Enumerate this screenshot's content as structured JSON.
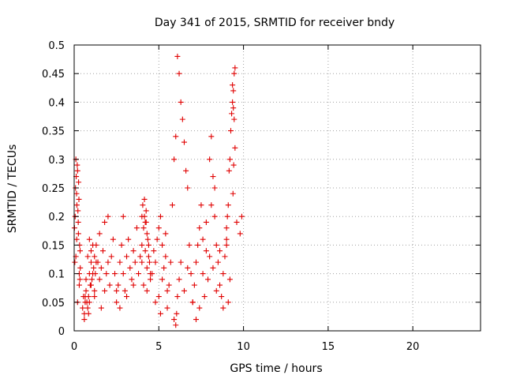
{
  "chart_data": {
    "type": "scatter",
    "title": "Day 341 of 2015, SRMTID for receiver bndy",
    "xlabel": "GPS time / hours",
    "ylabel": "SRMTID / TECUs",
    "xlim": [
      0,
      24
    ],
    "ylim": [
      0,
      0.5
    ],
    "x_ticks": [
      0,
      5,
      10,
      15,
      20
    ],
    "x_tick_labels": [
      "0",
      "5",
      "10",
      "15",
      "20"
    ],
    "y_ticks": [
      0,
      0.05,
      0.1,
      0.15,
      0.2,
      0.25,
      0.3,
      0.35,
      0.4,
      0.45,
      0.5
    ],
    "y_tick_labels": [
      "0",
      "0.05",
      "0.1",
      "0.15",
      "0.2",
      "0.25",
      "0.3",
      "0.35",
      "0.4",
      "0.45",
      "0.5"
    ],
    "grid": true,
    "marker": "+",
    "marker_color": "#e00000",
    "series": [
      {
        "name": "SRMTID",
        "x": [
          0.02,
          0.04,
          0.06,
          0.08,
          0.1,
          0.12,
          0.14,
          0.16,
          0.18,
          0.2,
          0.22,
          0.24,
          0.26,
          0.28,
          0.3,
          0.32,
          0.34,
          0.36,
          0.1,
          0.2,
          0.3,
          0.15,
          0.25,
          0.35,
          0.5,
          0.55,
          0.6,
          0.65,
          0.7,
          0.75,
          0.8,
          0.85,
          0.9,
          0.95,
          1.0,
          1.05,
          1.1,
          1.15,
          1.2,
          1.25,
          1.3,
          0.6,
          0.7,
          0.8,
          0.9,
          1.0,
          0.65,
          0.85,
          0.9,
          1.0,
          1.1,
          1.2,
          1.3,
          1.4,
          1.5,
          1.6,
          1.7,
          1.8,
          1.9,
          2.0,
          2.1,
          2.2,
          2.3,
          2.4,
          2.5,
          1.5,
          1.8,
          2.0,
          1.2,
          1.6,
          2.5,
          2.6,
          2.7,
          2.8,
          2.9,
          3.0,
          3.1,
          3.2,
          3.3,
          3.4,
          3.5,
          3.6,
          3.7,
          3.8,
          3.9,
          4.0,
          2.9,
          3.1,
          3.5,
          2.7,
          4.0,
          4.05,
          4.1,
          4.15,
          4.2,
          4.25,
          4.3,
          4.35,
          4.4,
          4.45,
          4.5,
          4.1,
          4.2,
          4.3,
          4.15,
          4.25,
          4.4,
          4.5,
          4.0,
          4.3,
          4.6,
          4.7,
          4.8,
          4.9,
          5.0,
          5.1,
          5.2,
          5.3,
          5.4,
          5.5,
          4.8,
          5.0,
          5.2,
          5.4,
          5.1,
          5.5,
          5.6,
          5.7,
          5.8,
          5.9,
          6.0,
          6.1,
          6.2,
          6.3,
          6.4,
          6.5,
          6.6,
          6.7,
          6.8,
          6.9,
          7.0,
          5.9,
          6.0,
          6.05,
          6.1,
          6.2,
          6.3,
          6.5,
          6.7,
          7.0,
          7.1,
          7.2,
          7.3,
          7.4,
          7.5,
          7.6,
          7.7,
          7.8,
          7.9,
          8.0,
          7.2,
          7.4,
          7.6,
          7.8,
          8.0,
          8.1,
          8.2,
          8.3,
          8.4,
          8.5,
          8.6,
          8.7,
          8.8,
          8.9,
          9.0,
          9.1,
          9.2,
          8.2,
          8.4,
          8.6,
          8.8,
          9.0,
          8.1,
          8.3,
          9.0,
          9.05,
          9.1,
          9.15,
          9.2,
          9.25,
          9.3,
          9.35,
          9.4,
          9.45,
          9.5,
          9.35,
          9.4,
          9.45,
          9.5,
          9.42,
          9.38,
          9.6,
          9.8,
          9.9
        ],
        "y": [
          0.18,
          0.12,
          0.2,
          0.25,
          0.3,
          0.27,
          0.24,
          0.22,
          0.29,
          0.28,
          0.21,
          0.19,
          0.26,
          0.23,
          0.1,
          0.15,
          0.09,
          0.11,
          0.13,
          0.05,
          0.08,
          0.16,
          0.17,
          0.14,
          0.04,
          0.06,
          0.03,
          0.05,
          0.07,
          0.05,
          0.04,
          0.06,
          0.1,
          0.08,
          0.12,
          0.09,
          0.15,
          0.11,
          0.07,
          0.1,
          0.12,
          0.02,
          0.09,
          0.13,
          0.16,
          0.14,
          0.06,
          0.03,
          0.05,
          0.08,
          0.1,
          0.13,
          0.15,
          0.12,
          0.09,
          0.11,
          0.14,
          0.07,
          0.1,
          0.12,
          0.08,
          0.13,
          0.16,
          0.1,
          0.07,
          0.17,
          0.19,
          0.2,
          0.06,
          0.04,
          0.05,
          0.08,
          0.12,
          0.15,
          0.1,
          0.07,
          0.13,
          0.16,
          0.11,
          0.09,
          0.14,
          0.12,
          0.18,
          0.1,
          0.13,
          0.15,
          0.2,
          0.06,
          0.08,
          0.04,
          0.2,
          0.22,
          0.18,
          0.23,
          0.19,
          0.21,
          0.17,
          0.16,
          0.15,
          0.12,
          0.1,
          0.08,
          0.14,
          0.11,
          0.2,
          0.19,
          0.13,
          0.09,
          0.12,
          0.07,
          0.1,
          0.14,
          0.12,
          0.16,
          0.18,
          0.2,
          0.09,
          0.11,
          0.13,
          0.07,
          0.05,
          0.06,
          0.15,
          0.17,
          0.03,
          0.04,
          0.08,
          0.12,
          0.22,
          0.3,
          0.34,
          0.48,
          0.45,
          0.4,
          0.37,
          0.33,
          0.28,
          0.25,
          0.15,
          0.1,
          0.05,
          0.02,
          0.01,
          0.03,
          0.06,
          0.09,
          0.12,
          0.07,
          0.11,
          0.05,
          0.08,
          0.12,
          0.15,
          0.18,
          0.22,
          0.1,
          0.06,
          0.14,
          0.09,
          0.13,
          0.02,
          0.04,
          0.16,
          0.19,
          0.3,
          0.34,
          0.27,
          0.2,
          0.15,
          0.12,
          0.08,
          0.06,
          0.1,
          0.13,
          0.16,
          0.05,
          0.09,
          0.11,
          0.07,
          0.14,
          0.04,
          0.18,
          0.22,
          0.25,
          0.15,
          0.2,
          0.22,
          0.28,
          0.3,
          0.35,
          0.38,
          0.4,
          0.42,
          0.45,
          0.46,
          0.43,
          0.39,
          0.37,
          0.32,
          0.29,
          0.24,
          0.19,
          0.17,
          0.2
        ]
      }
    ]
  }
}
